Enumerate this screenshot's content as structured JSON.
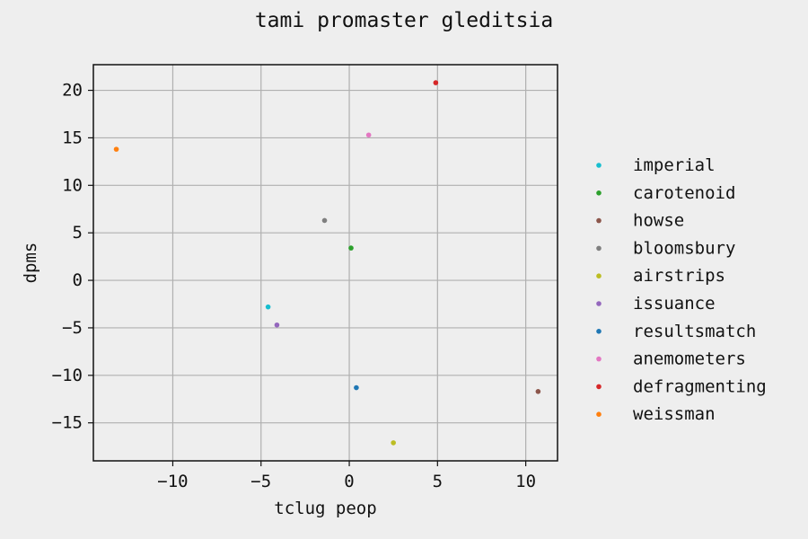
{
  "chart_data": {
    "type": "scatter",
    "title": "tami promaster gleditsia",
    "xlabel": "tclug peop",
    "ylabel": "dpms",
    "xlim": [
      -14.5,
      11.8
    ],
    "ylim": [
      -19.0,
      22.7
    ],
    "xticks": [
      -10,
      -5,
      0,
      5,
      10
    ],
    "yticks": [
      -15,
      -10,
      -5,
      0,
      5,
      10,
      15,
      20
    ],
    "grid": true,
    "legend_position": "right",
    "series": [
      {
        "name": "imperial",
        "color": "#17becf",
        "x": [
          -4.6
        ],
        "y": [
          -2.8
        ]
      },
      {
        "name": "carotenoid",
        "color": "#2ca02c",
        "x": [
          0.1
        ],
        "y": [
          3.4
        ]
      },
      {
        "name": "howse",
        "color": "#8c564b",
        "x": [
          10.7
        ],
        "y": [
          -11.7
        ]
      },
      {
        "name": "bloomsbury",
        "color": "#7f7f7f",
        "x": [
          -1.4
        ],
        "y": [
          6.3
        ]
      },
      {
        "name": "airstrips",
        "color": "#bcbd22",
        "x": [
          2.5
        ],
        "y": [
          -17.1
        ]
      },
      {
        "name": "issuance",
        "color": "#9467bd",
        "x": [
          -4.1
        ],
        "y": [
          -4.7
        ]
      },
      {
        "name": "resultsmatch",
        "color": "#1f77b4",
        "x": [
          0.4
        ],
        "y": [
          -11.3
        ]
      },
      {
        "name": "anemometers",
        "color": "#e377c2",
        "x": [
          1.1
        ],
        "y": [
          15.3
        ]
      },
      {
        "name": "defragmenting",
        "color": "#d62728",
        "x": [
          4.9
        ],
        "y": [
          20.8
        ]
      },
      {
        "name": "weissman",
        "color": "#ff7f0e",
        "x": [
          -13.2
        ],
        "y": [
          13.8
        ]
      }
    ]
  }
}
